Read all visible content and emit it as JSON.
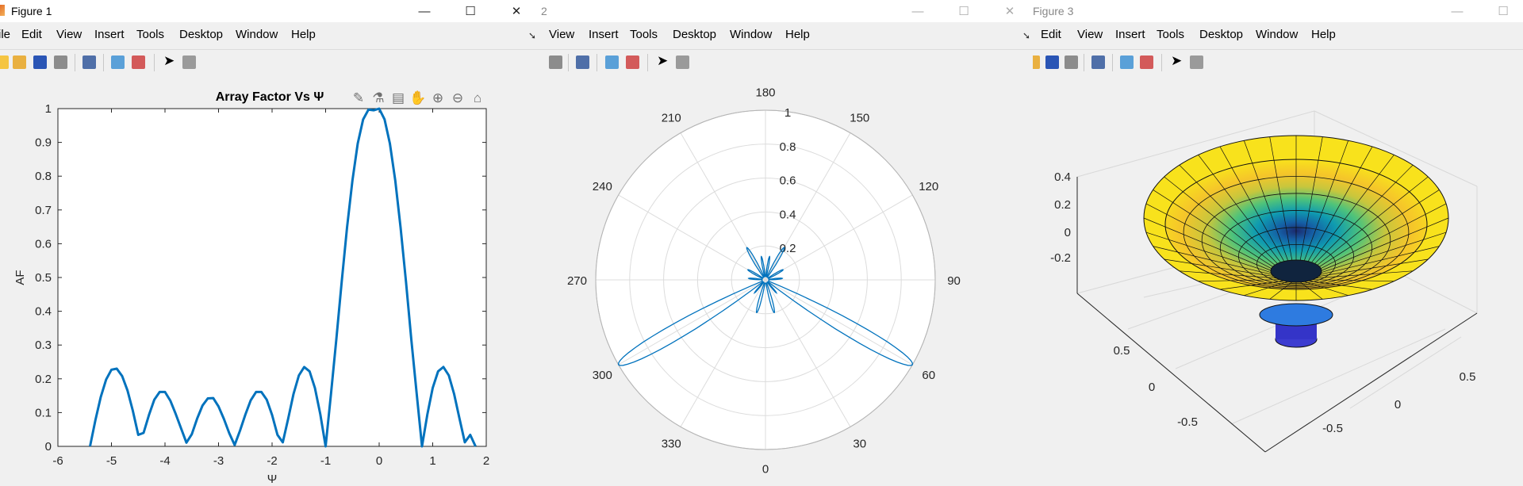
{
  "figures": [
    {
      "title": "Figure 1",
      "menu": [
        "ile",
        "Edit",
        "View",
        "Insert",
        "Tools",
        "Desktop",
        "Window",
        "Help"
      ],
      "window_controls": [
        "—",
        "☐",
        "✕"
      ]
    },
    {
      "title": "2",
      "menu": [
        "View",
        "Insert",
        "Tools",
        "Desktop",
        "Window",
        "Help"
      ],
      "window_controls": [
        "—",
        "☐",
        "✕"
      ]
    },
    {
      "title": "Figure 3",
      "menu": [
        "Edit",
        "View",
        "Insert",
        "Tools",
        "Desktop",
        "Window",
        "Help"
      ],
      "window_controls": [
        "—",
        "☐"
      ]
    }
  ],
  "chart_data": [
    {
      "type": "line",
      "title": "Array Factor Vs Ψ",
      "xlabel": "Ψ",
      "ylabel": "AF",
      "xlim": [
        -6,
        2
      ],
      "ylim": [
        0,
        1
      ],
      "xticks": [
        "-6",
        "-5",
        "-4",
        "-3",
        "-2",
        "-1",
        "0",
        "1",
        "2"
      ],
      "yticks": [
        "0",
        "0.1",
        "0.2",
        "0.3",
        "0.4",
        "0.5",
        "0.6",
        "0.7",
        "0.8",
        "0.9",
        "1"
      ],
      "grid": false,
      "color": "#0072BD",
      "x": [
        -5.4,
        -5.3,
        -5.2,
        -5.1,
        -5.0,
        -4.9,
        -4.8,
        -4.7,
        -4.6,
        -4.5,
        -4.4,
        -4.3,
        -4.2,
        -4.1,
        -4.0,
        -3.9,
        -3.8,
        -3.7,
        -3.6,
        -3.5,
        -3.4,
        -3.3,
        -3.2,
        -3.1,
        -3.0,
        -2.9,
        -2.8,
        -2.7,
        -2.6,
        -2.5,
        -2.4,
        -2.3,
        -2.2,
        -2.1,
        -2.0,
        -1.9,
        -1.8,
        -1.7,
        -1.6,
        -1.5,
        -1.4,
        -1.3,
        -1.2,
        -1.1,
        -1.0,
        -0.9,
        -0.8,
        -0.7,
        -0.6,
        -0.5,
        -0.4,
        -0.3,
        -0.2,
        -0.1,
        0.0,
        0.1,
        0.2,
        0.3,
        0.4,
        0.5,
        0.6,
        0.7,
        0.8,
        0.9,
        1.0,
        1.1,
        1.2,
        1.3,
        1.4,
        1.5,
        1.6,
        1.7,
        1.8
      ],
      "y": [
        0.0,
        0.078,
        0.146,
        0.198,
        0.227,
        0.23,
        0.208,
        0.165,
        0.105,
        0.034,
        0.04,
        0.093,
        0.138,
        0.161,
        0.161,
        0.135,
        0.096,
        0.053,
        0.011,
        0.036,
        0.082,
        0.121,
        0.142,
        0.143,
        0.118,
        0.081,
        0.039,
        0.004,
        0.046,
        0.094,
        0.136,
        0.161,
        0.161,
        0.138,
        0.093,
        0.034,
        0.012,
        0.082,
        0.155,
        0.21,
        0.235,
        0.222,
        0.173,
        0.095,
        0.0,
        0.156,
        0.317,
        0.488,
        0.648,
        0.787,
        0.897,
        0.968,
        0.997,
        0.995,
        1.0,
        0.968,
        0.897,
        0.787,
        0.648,
        0.488,
        0.317,
        0.156,
        0.0,
        0.095,
        0.173,
        0.222,
        0.235,
        0.21,
        0.155,
        0.082,
        0.012,
        0.034,
        0.0
      ]
    },
    {
      "type": "line",
      "subtype": "polar",
      "title": "",
      "theta_ticks": [
        "0",
        "30",
        "60",
        "90",
        "120",
        "150",
        "180",
        "210",
        "240",
        "270",
        "300",
        "330"
      ],
      "r_ticks": [
        "0.2",
        "0.4",
        "0.6",
        "0.8",
        "1"
      ],
      "rlim": [
        0,
        1
      ],
      "theta_zero": "bottom",
      "color": "#0072BD",
      "lobes": [
        {
          "angle": 60,
          "r": 1.0,
          "width": 7.5
        },
        {
          "angle": 300,
          "r": 1.0,
          "width": 7.5
        },
        {
          "angle": 150,
          "r": 0.22,
          "width": 6
        },
        {
          "angle": 210,
          "r": 0.22,
          "width": 6
        },
        {
          "angle": 15,
          "r": 0.2,
          "width": 6
        },
        {
          "angle": 345,
          "r": 0.2,
          "width": 6
        },
        {
          "angle": 120,
          "r": 0.12,
          "width": 6
        },
        {
          "angle": 240,
          "r": 0.12,
          "width": 6
        },
        {
          "angle": 95,
          "r": 0.1,
          "width": 5
        },
        {
          "angle": 265,
          "r": 0.1,
          "width": 5
        },
        {
          "angle": 170,
          "r": 0.14,
          "width": 5
        },
        {
          "angle": 190,
          "r": 0.14,
          "width": 5
        },
        {
          "angle": 40,
          "r": 0.1,
          "width": 4
        },
        {
          "angle": 320,
          "r": 0.1,
          "width": 4
        }
      ]
    },
    {
      "type": "other",
      "subtype": "3d-surface",
      "title": "",
      "zticks": [
        "0.4",
        "0.2",
        "0",
        "-0.2"
      ],
      "yticks_left": [
        "0.5",
        "0",
        "-0.5"
      ],
      "xticks_right": [
        "0.5",
        "0",
        "-0.5"
      ],
      "colormap": "parula"
    }
  ]
}
